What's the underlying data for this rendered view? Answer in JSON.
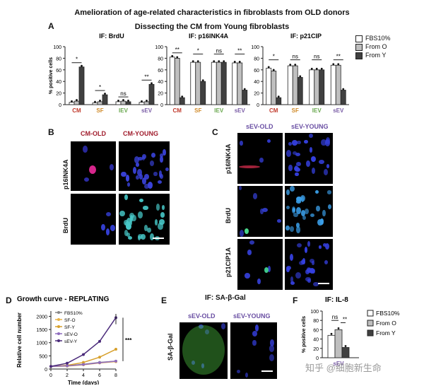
{
  "figure": {
    "title_line1": "Amelioration of age-related characteristics in fibroblasts from OLD donors",
    "title_line2": "Dissecting the CM from Young fibroblasts"
  },
  "panels": {
    "A": "A",
    "B": "B",
    "C": "C",
    "D": "D",
    "E": "E",
    "F": "F"
  },
  "panelA": {
    "ylabel": "% positive cells",
    "legend": [
      {
        "label": "FBS10%",
        "color": "#ffffff"
      },
      {
        "label": "From O",
        "color": "#bfbfbf"
      },
      {
        "label": "From Y",
        "color": "#404040"
      }
    ],
    "group_colors": {
      "CM": "#c0392b",
      "SF": "#d08a28",
      "IEV": "#6aa84f",
      "sEV": "#7b5ea7"
    }
  },
  "chart_data": [
    {
      "type": "bar",
      "title": "IF: BrdU",
      "ylabel": "% positive cells",
      "ylim": [
        0,
        100
      ],
      "yticks": [
        0,
        20,
        40,
        60,
        80,
        100
      ],
      "categories": [
        "CM",
        "SF",
        "IEV",
        "sEV"
      ],
      "series": [
        {
          "name": "FBS10%",
          "values": [
            4,
            3,
            5,
            4
          ]
        },
        {
          "name": "From O",
          "values": [
            6,
            5,
            6,
            5
          ]
        },
        {
          "name": "From Y",
          "values": [
            65,
            17,
            5,
            35
          ]
        }
      ],
      "significance": [
        "*",
        "*",
        "ns",
        "**"
      ]
    },
    {
      "type": "bar",
      "title": "IF: p16INK4A",
      "ylabel": "",
      "ylim": [
        0,
        100
      ],
      "yticks": [
        0,
        20,
        40,
        60,
        80,
        100
      ],
      "categories": [
        "CM",
        "SF",
        "IEV",
        "sEV"
      ],
      "series": [
        {
          "name": "FBS10%",
          "values": [
            82,
            73,
            73,
            72
          ]
        },
        {
          "name": "From O",
          "values": [
            80,
            73,
            73,
            72
          ]
        },
        {
          "name": "From Y",
          "values": [
            12,
            40,
            73,
            25
          ]
        }
      ],
      "significance": [
        "**",
        "*",
        "ns",
        "**"
      ]
    },
    {
      "type": "bar",
      "title": "IF: p21CIP",
      "ylabel": "",
      "ylim": [
        0,
        100
      ],
      "yticks": [
        0,
        20,
        40,
        60,
        80,
        100
      ],
      "categories": [
        "CM",
        "SF",
        "IEV",
        "sEV"
      ],
      "series": [
        {
          "name": "FBS10%",
          "values": [
            63,
            67,
            60,
            68
          ]
        },
        {
          "name": "From O",
          "values": [
            58,
            67,
            60,
            68
          ]
        },
        {
          "name": "From Y",
          "values": [
            12,
            47,
            60,
            25
          ]
        }
      ],
      "significance": [
        "*",
        "ns",
        "ns",
        "**"
      ]
    },
    {
      "type": "line",
      "title": "Growth curve - REPLATING",
      "xlabel": "Time (days)",
      "ylabel": "Relative cell number",
      "xlim": [
        0,
        8
      ],
      "ylim": [
        0,
        2200
      ],
      "xticks": [
        0,
        2,
        4,
        6,
        8
      ],
      "yticks": [
        0,
        500,
        1000,
        1500,
        2000
      ],
      "x": [
        0,
        2,
        4,
        6,
        8
      ],
      "series": [
        {
          "name": "FBS10%",
          "color": "#888888",
          "values": [
            100,
            120,
            180,
            250,
            300
          ]
        },
        {
          "name": "SF-O",
          "color": "#e8b347",
          "values": [
            100,
            110,
            160,
            230,
            280
          ]
        },
        {
          "name": "SF-Y",
          "color": "#d7a02c",
          "values": [
            100,
            140,
            250,
            450,
            750
          ]
        },
        {
          "name": "sEV-O",
          "color": "#8e6bbd",
          "values": [
            100,
            120,
            170,
            240,
            300
          ]
        },
        {
          "name": "sEV-Y",
          "color": "#4a2a7a",
          "values": [
            100,
            220,
            550,
            1050,
            1950
          ]
        }
      ],
      "significance": "***"
    },
    {
      "type": "bar",
      "title": "IF: IL-8",
      "ylabel": "% positive cells",
      "xlabel": "sEV",
      "ylim": [
        0,
        100
      ],
      "yticks": [
        0,
        20,
        40,
        60,
        80,
        100
      ],
      "categories": [
        "sEV"
      ],
      "series": [
        {
          "name": "FBS10%",
          "values": [
            48
          ]
        },
        {
          "name": "From O",
          "values": [
            60
          ]
        },
        {
          "name": "From Y",
          "values": [
            22
          ]
        }
      ],
      "significance": [
        "ns",
        "**"
      ]
    }
  ],
  "panelB": {
    "col1": "CM-OLD",
    "col2": "CM-YOUNG",
    "row1": "p16INK4A",
    "row2": "BrdU"
  },
  "panelC": {
    "col1": "sEV-OLD",
    "col2": "sEV-YOUNG",
    "row1": "p16INK4A",
    "row2": "BrdU",
    "row3": "p21CIP1A"
  },
  "panelE": {
    "title": "IF: SA-β-Gal",
    "col1": "sEV-OLD",
    "col2": "sEV-YOUNG",
    "row": "SA-β-Gal"
  },
  "watermark": "知乎 @细胞新生命"
}
